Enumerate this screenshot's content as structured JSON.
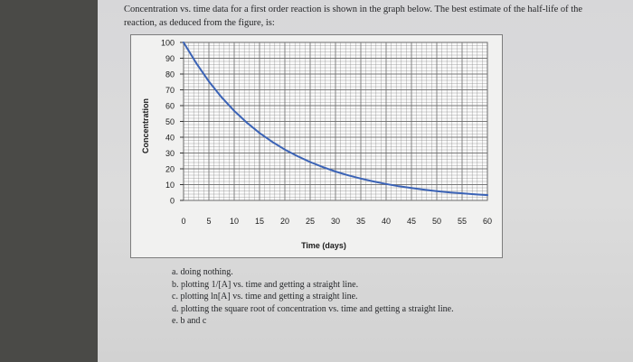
{
  "question": "Concentration vs. time data for a first order reaction is shown in the graph below. The best estimate of the half-life of the reaction, as deduced from the figure, is:",
  "answers": [
    "a. doing nothing.",
    "b. plotting 1/[A] vs. time and getting a straight line.",
    "c. plotting ln[A] vs. time and getting a straight line.",
    "d. plotting the square root of concentration vs. time and getting a straight line.",
    "e. b and c"
  ],
  "colors": {
    "curve": "#3b63b6",
    "grid": "#6b6b6b",
    "axis_text": "#1a1a1a"
  },
  "chart_data": {
    "type": "line",
    "title": "",
    "xlabel": "Time (days)",
    "ylabel": "Concentration",
    "xlim": [
      0,
      60
    ],
    "ylim": [
      0,
      100
    ],
    "xticks": [
      "0",
      "5",
      "10",
      "15",
      "20",
      "25",
      "30",
      "35",
      "40",
      "45",
      "50",
      "55",
      "60"
    ],
    "yticks": [
      "0",
      "10",
      "20",
      "30",
      "40",
      "50",
      "60",
      "70",
      "80",
      "90",
      "100"
    ],
    "grid": true,
    "series": [
      {
        "x": [
          0,
          2.5,
          5,
          7.5,
          10,
          12.5,
          15,
          17.5,
          20,
          22.5,
          25,
          27.5,
          30,
          32.5,
          35,
          37.5,
          40,
          42.5,
          45,
          47.5,
          50,
          52.5,
          55,
          57.5,
          60
        ],
        "y": [
          100,
          86.9,
          75.3,
          65.3,
          56.7,
          49.2,
          42.7,
          37.1,
          32.2,
          28.0,
          24.3,
          21.1,
          18.3,
          15.9,
          13.8,
          12.0,
          10.4,
          9.0,
          7.9,
          6.8,
          5.9,
          5.1,
          4.5,
          3.9,
          3.4
        ]
      }
    ]
  }
}
